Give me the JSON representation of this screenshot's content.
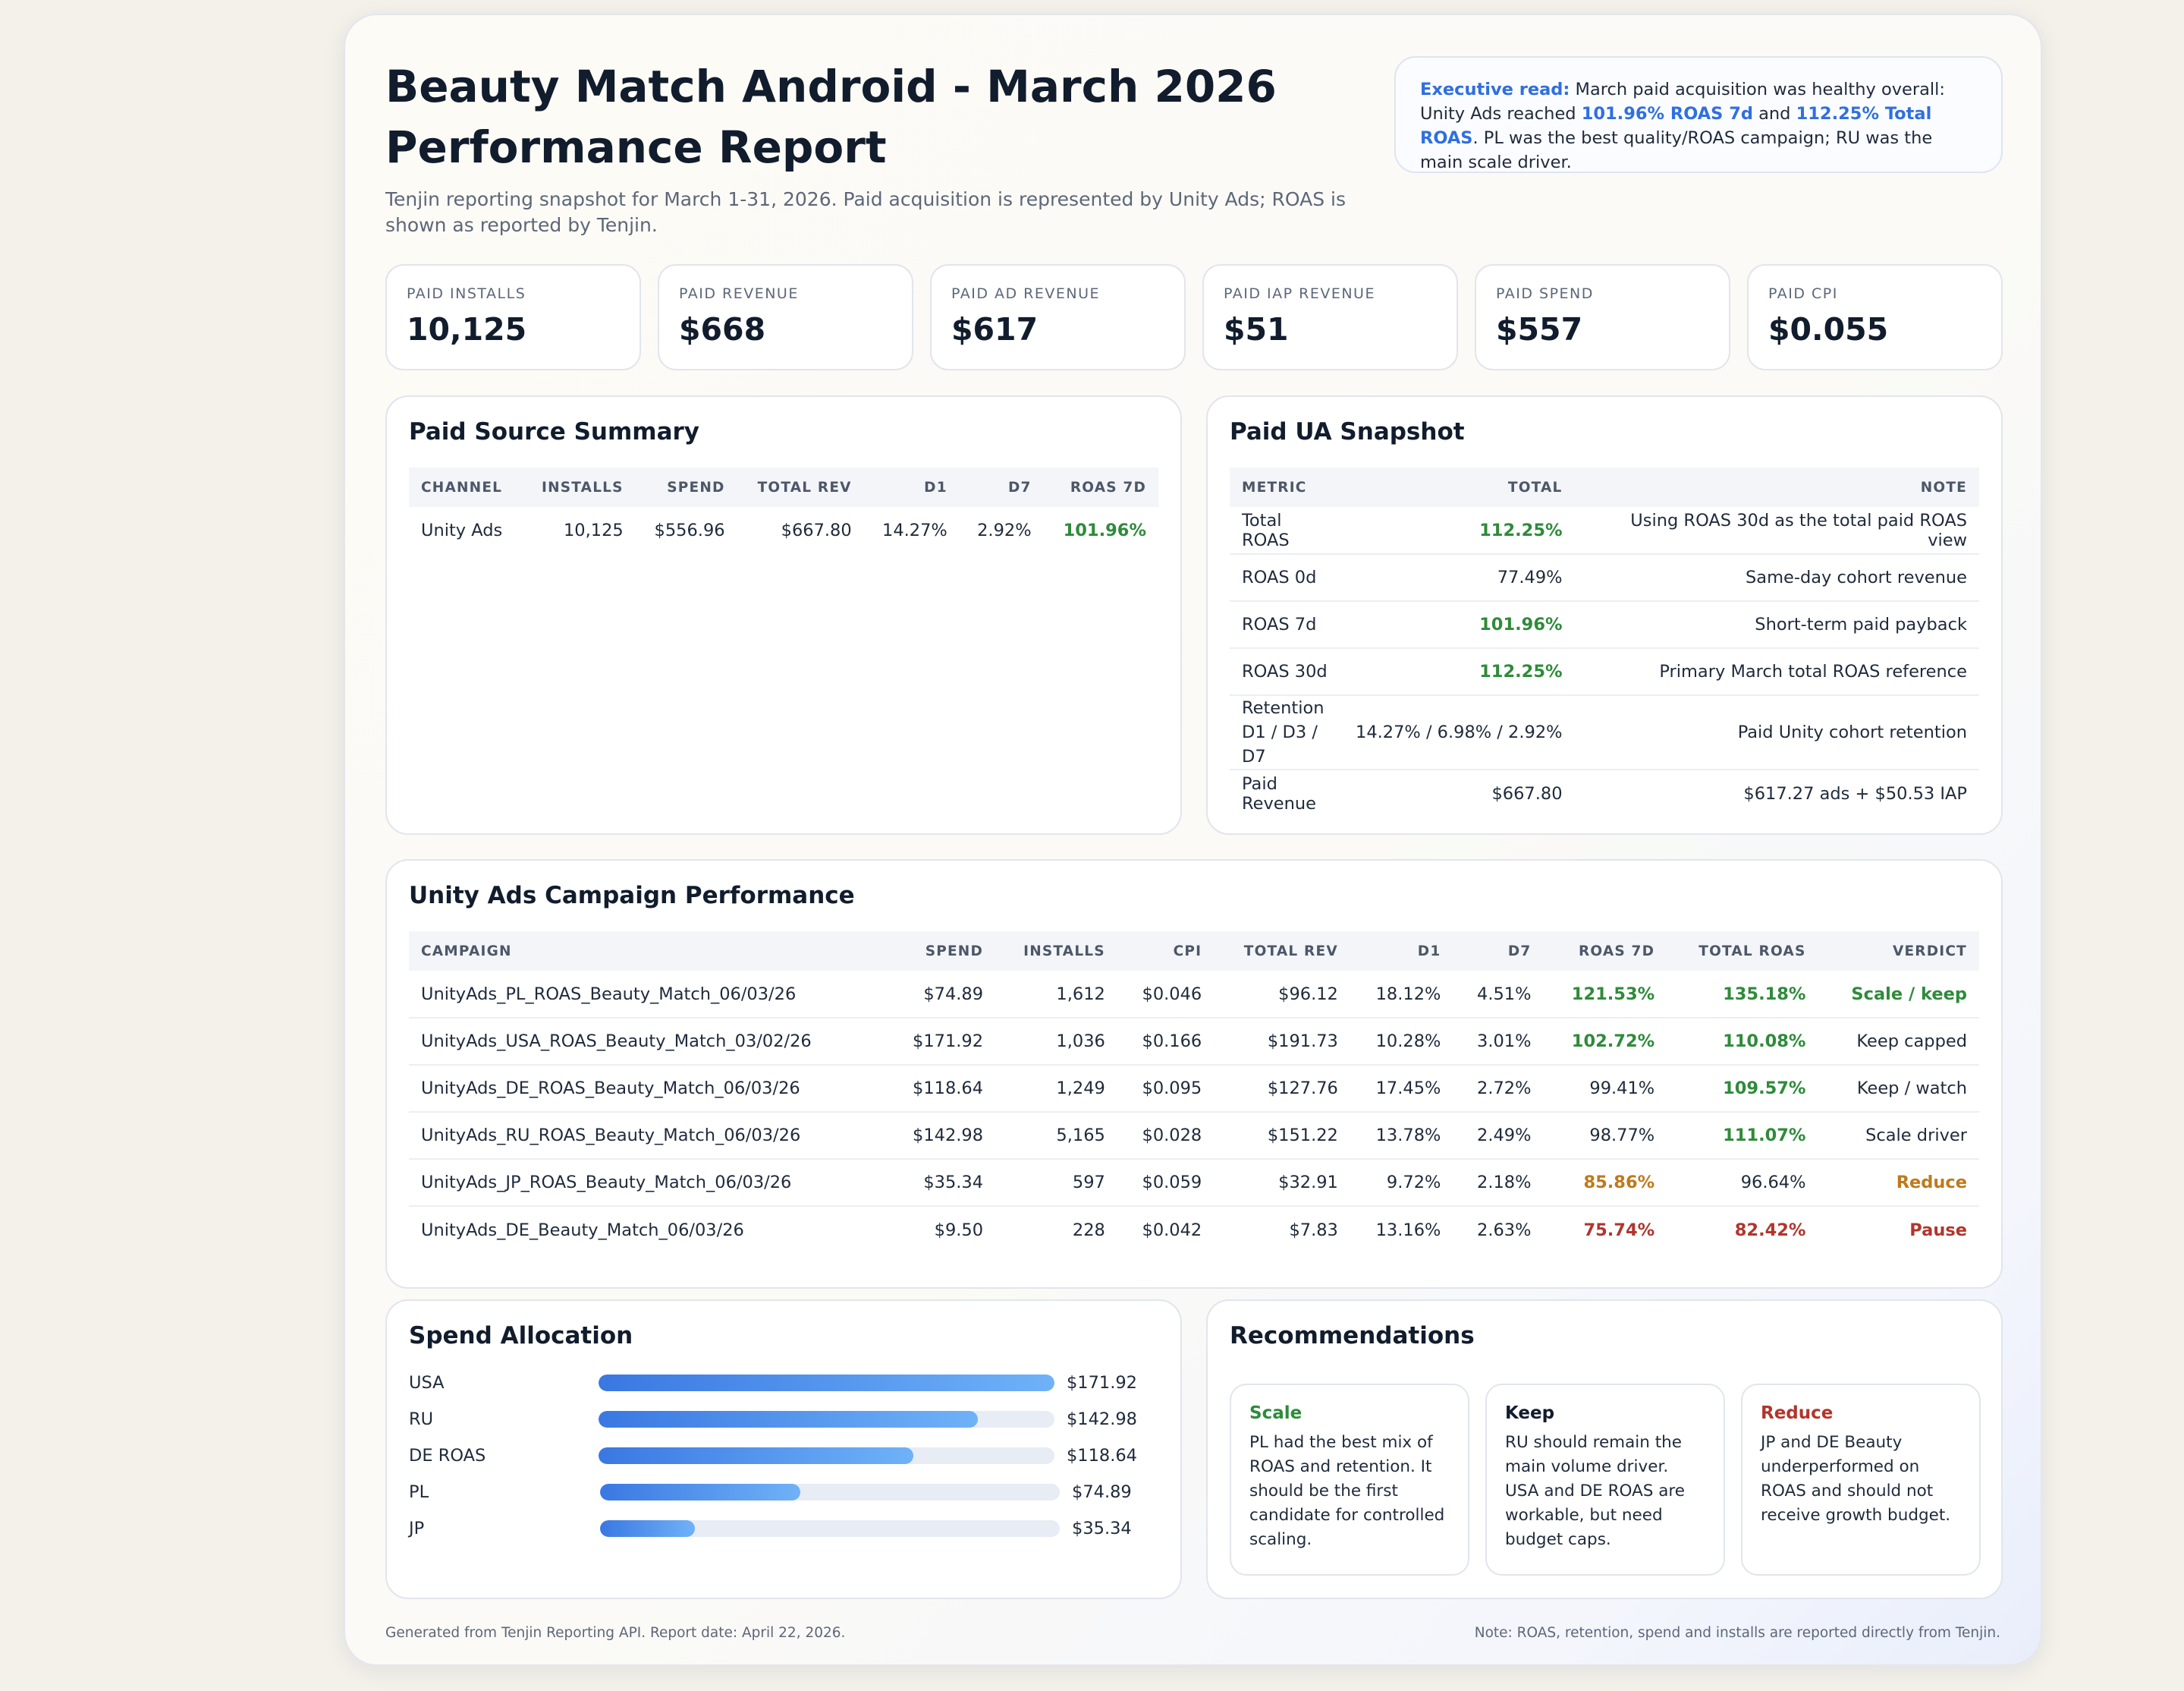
{
  "header": {
    "title_line1": "Beauty Match Android - March 2026",
    "title_line2": "Performance Report",
    "subtitle": "Tenjin reporting snapshot for March 1-31, 2026. Paid acquisition is represented by Unity Ads; ROAS is shown as reported by Tenjin."
  },
  "executive": {
    "label": "Executive read:",
    "text1": " March paid acquisition was healthy overall: Unity Ads reached ",
    "hl1": "101.96% ROAS 7d",
    "text2": " and ",
    "hl2": "112.25% Total ROAS",
    "text3": ". PL was the best quality/ROAS campaign; RU was the main scale driver."
  },
  "kpis": [
    {
      "label": "PAID INSTALLS",
      "value": "10,125"
    },
    {
      "label": "PAID REVENUE",
      "value": "$668"
    },
    {
      "label": "PAID AD REVENUE",
      "value": "$617"
    },
    {
      "label": "PAID IAP REVENUE",
      "value": "$51"
    },
    {
      "label": "PAID SPEND",
      "value": "$557"
    },
    {
      "label": "PAID CPI",
      "value": "$0.055"
    }
  ],
  "source_summary": {
    "title": "Paid Source Summary",
    "headers": [
      "CHANNEL",
      "INSTALLS",
      "SPEND",
      "TOTAL REV",
      "D1",
      "D7",
      "ROAS 7D"
    ],
    "row": {
      "channel": "Unity Ads",
      "installs": "10,125",
      "spend": "$556.96",
      "total_rev": "$667.80",
      "d1": "14.27%",
      "d7": "2.92%",
      "roas7d": "101.96%"
    }
  },
  "ua_snapshot": {
    "title": "Paid UA Snapshot",
    "headers": [
      "METRIC",
      "TOTAL",
      "NOTE"
    ],
    "rows": [
      {
        "metric": "Total ROAS",
        "total": "112.25%",
        "note": "Using ROAS 30d as the total paid ROAS view",
        "color": "green"
      },
      {
        "metric": "ROAS 0d",
        "total": "77.49%",
        "note": "Same-day cohort revenue",
        "color": "plain"
      },
      {
        "metric": "ROAS 7d",
        "total": "101.96%",
        "note": "Short-term paid payback",
        "color": "green"
      },
      {
        "metric": "ROAS 30d",
        "total": "112.25%",
        "note": "Primary March total ROAS reference",
        "color": "green"
      },
      {
        "metric": "Retention D1 / D3 / D7",
        "total": "14.27% / 6.98% / 2.92%",
        "note": "Paid Unity cohort retention",
        "color": "plain"
      },
      {
        "metric": "Paid Revenue",
        "total": "$667.80",
        "note": "$617.27 ads + $50.53 IAP",
        "color": "plain"
      }
    ]
  },
  "campaigns": {
    "title": "Unity Ads Campaign Performance",
    "headers": [
      "CAMPAIGN",
      "SPEND",
      "INSTALLS",
      "CPI",
      "TOTAL REV",
      "D1",
      "D7",
      "ROAS 7D",
      "TOTAL ROAS",
      "VERDICT"
    ],
    "rows": [
      {
        "name": "UnityAds_PL_ROAS_Beauty_Match_06/03/26",
        "spend": "$74.89",
        "installs": "1,612",
        "cpi": "$0.046",
        "rev": "$96.12",
        "d1": "18.12%",
        "d7": "4.51%",
        "roas7d": "121.53%",
        "roas7d_c": "green",
        "total_roas": "135.18%",
        "total_c": "green",
        "verdict": "Scale / keep",
        "verdict_c": "green"
      },
      {
        "name": "UnityAds_USA_ROAS_Beauty_Match_03/02/26",
        "spend": "$171.92",
        "installs": "1,036",
        "cpi": "$0.166",
        "rev": "$191.73",
        "d1": "10.28%",
        "d7": "3.01%",
        "roas7d": "102.72%",
        "roas7d_c": "green",
        "total_roas": "110.08%",
        "total_c": "green",
        "verdict": "Keep capped",
        "verdict_c": "plain"
      },
      {
        "name": "UnityAds_DE_ROAS_Beauty_Match_06/03/26",
        "spend": "$118.64",
        "installs": "1,249",
        "cpi": "$0.095",
        "rev": "$127.76",
        "d1": "17.45%",
        "d7": "2.72%",
        "roas7d": "99.41%",
        "roas7d_c": "plain",
        "total_roas": "109.57%",
        "total_c": "green",
        "verdict": "Keep / watch",
        "verdict_c": "plain"
      },
      {
        "name": "UnityAds_RU_ROAS_Beauty_Match_06/03/26",
        "spend": "$142.98",
        "installs": "5,165",
        "cpi": "$0.028",
        "rev": "$151.22",
        "d1": "13.78%",
        "d7": "2.49%",
        "roas7d": "98.77%",
        "roas7d_c": "plain",
        "total_roas": "111.07%",
        "total_c": "green",
        "verdict": "Scale driver",
        "verdict_c": "plain"
      },
      {
        "name": "UnityAds_JP_ROAS_Beauty_Match_06/03/26",
        "spend": "$35.34",
        "installs": "597",
        "cpi": "$0.059",
        "rev": "$32.91",
        "d1": "9.72%",
        "d7": "2.18%",
        "roas7d": "85.86%",
        "roas7d_c": "orange",
        "total_roas": "96.64%",
        "total_c": "plain",
        "verdict": "Reduce",
        "verdict_c": "orange"
      },
      {
        "name": "UnityAds_DE_Beauty_Match_06/03/26",
        "spend": "$9.50",
        "installs": "228",
        "cpi": "$0.042",
        "rev": "$7.83",
        "d1": "13.16%",
        "d7": "2.63%",
        "roas7d": "75.74%",
        "roas7d_c": "red",
        "total_roas": "82.42%",
        "total_c": "red",
        "verdict": "Pause",
        "verdict_c": "red"
      }
    ]
  },
  "spend_allocation": {
    "title": "Spend Allocation",
    "max": 171.92,
    "bars": [
      {
        "label": "USA",
        "value": 171.92,
        "display": "$171.92"
      },
      {
        "label": "RU",
        "value": 142.98,
        "display": "$142.98"
      },
      {
        "label": "DE ROAS",
        "value": 118.64,
        "display": "$118.64"
      },
      {
        "label": "PL",
        "value": 74.89,
        "display": "$74.89"
      },
      {
        "label": "JP",
        "value": 35.34,
        "display": "$35.34"
      }
    ]
  },
  "recommendations": {
    "title": "Recommendations",
    "items": [
      {
        "title": "Scale",
        "color": "#2e8b3a",
        "text": "PL had the best mix of ROAS and retention. It should be the first candidate for controlled scaling."
      },
      {
        "title": "Keep",
        "color": "#111c2d",
        "text": "RU should remain the main volume driver. USA and DE ROAS are workable, but need budget caps."
      },
      {
        "title": "Reduce",
        "color": "#b2352c",
        "text": "JP and DE Beauty underperformed on ROAS and should not receive growth budget."
      }
    ]
  },
  "footer": {
    "left": "Generated from Tenjin Reporting API. Report date: April 22, 2026.",
    "right": "Note: ROAS, retention, spend and installs are reported directly from Tenjin."
  }
}
